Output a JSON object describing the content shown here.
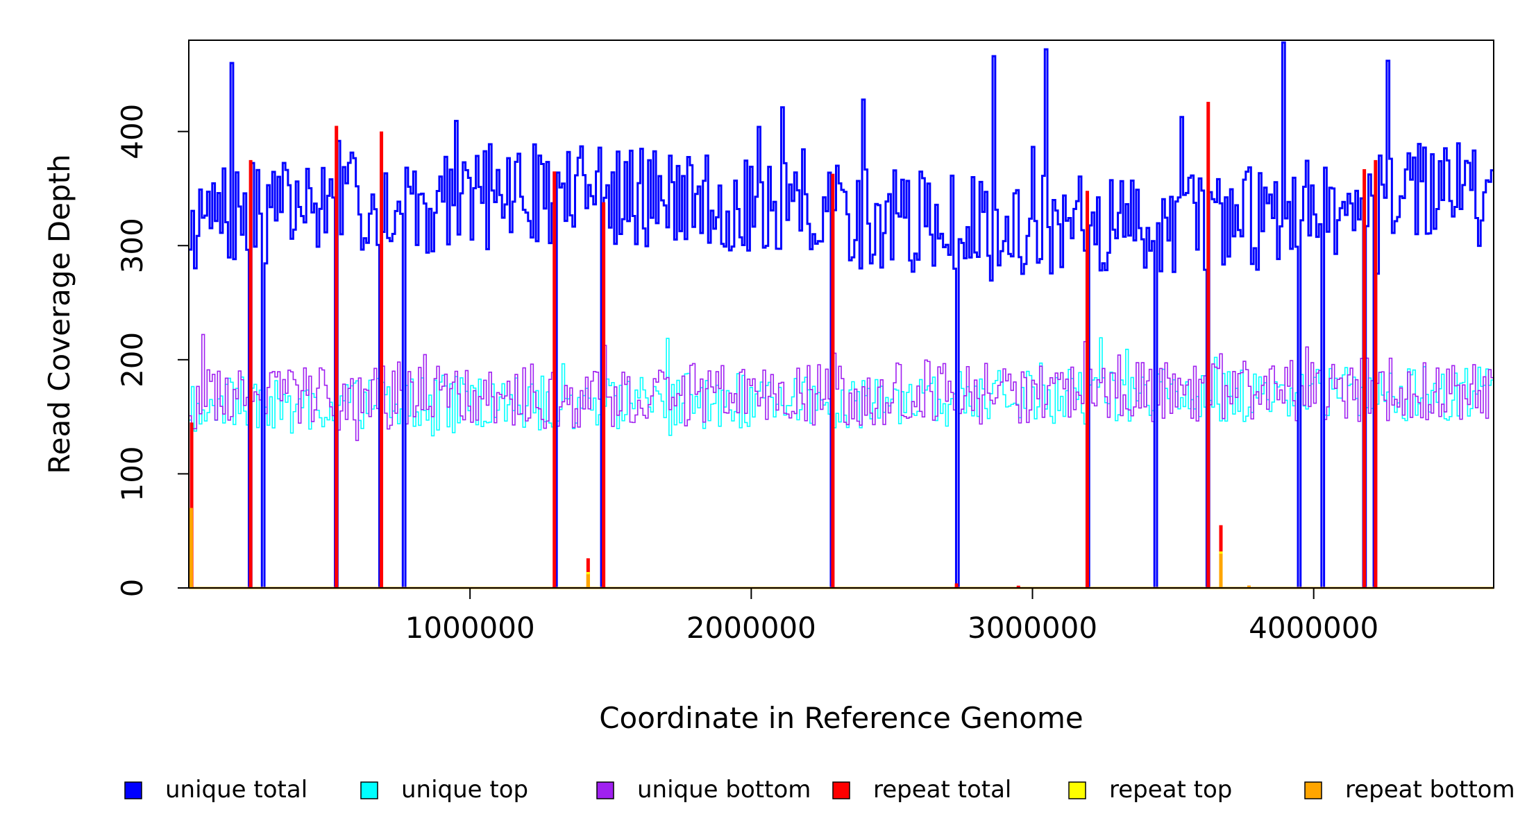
{
  "chart_data": {
    "type": "line",
    "xlabel": "Coordinate in Reference Genome",
    "ylabel": "Read Coverage Depth",
    "xlim": [
      0,
      4640000
    ],
    "ylim": [
      0,
      480
    ],
    "x_ticks": [
      1000000,
      2000000,
      3000000,
      4000000
    ],
    "x_tick_labels": [
      "1000000",
      "2000000",
      "3000000",
      "4000000"
    ],
    "y_ticks": [
      0,
      100,
      200,
      300,
      400
    ],
    "y_tick_labels": [
      "0",
      "100",
      "200",
      "300",
      "400"
    ],
    "grid": false,
    "legend_position": "bottom",
    "bins": 500,
    "series": [
      {
        "name": "unique total",
        "color": "#0000ff",
        "baseline": 320,
        "amplitude": 45,
        "dropouts_to_zero_at": [
          220000,
          265000,
          525000,
          685000,
          770000,
          1300000,
          1475000,
          2290000,
          2730000,
          3195000,
          3435000,
          3625000,
          3945000,
          4035000,
          4180000,
          4220000
        ],
        "peaks": [
          [
            155000,
            460
          ],
          [
            1450000,
            365
          ],
          [
            2400000,
            428
          ],
          [
            2860000,
            466
          ],
          [
            3050000,
            472
          ],
          [
            3890000,
            478
          ],
          [
            4260000,
            462
          ]
        ]
      },
      {
        "name": "unique top",
        "color": "#00ffff",
        "baseline": 160,
        "amplitude": 25
      },
      {
        "name": "unique bottom",
        "color": "#a020f0",
        "baseline": 165,
        "amplitude": 28
      },
      {
        "name": "repeat total",
        "color": "#ff0000",
        "spikes": [
          [
            10000,
            145
          ],
          [
            220000,
            375
          ],
          [
            525000,
            405
          ],
          [
            685000,
            400
          ],
          [
            1300000,
            365
          ],
          [
            1420000,
            26
          ],
          [
            1475000,
            338
          ],
          [
            2290000,
            363
          ],
          [
            2730000,
            4
          ],
          [
            2950000,
            2
          ],
          [
            3195000,
            348
          ],
          [
            3625000,
            426
          ],
          [
            3670000,
            55
          ],
          [
            3770000,
            2
          ],
          [
            4180000,
            367
          ],
          [
            4220000,
            375
          ]
        ]
      },
      {
        "name": "repeat top",
        "color": "#ffff00",
        "spikes": [
          [
            8000,
            70
          ],
          [
            1420000,
            14
          ],
          [
            3670000,
            32
          ]
        ]
      },
      {
        "name": "repeat bottom",
        "color": "#ffa500",
        "spikes": [
          [
            8000,
            70
          ],
          [
            1420000,
            12
          ],
          [
            3670000,
            30
          ],
          [
            3770000,
            2
          ]
        ]
      }
    ]
  }
}
